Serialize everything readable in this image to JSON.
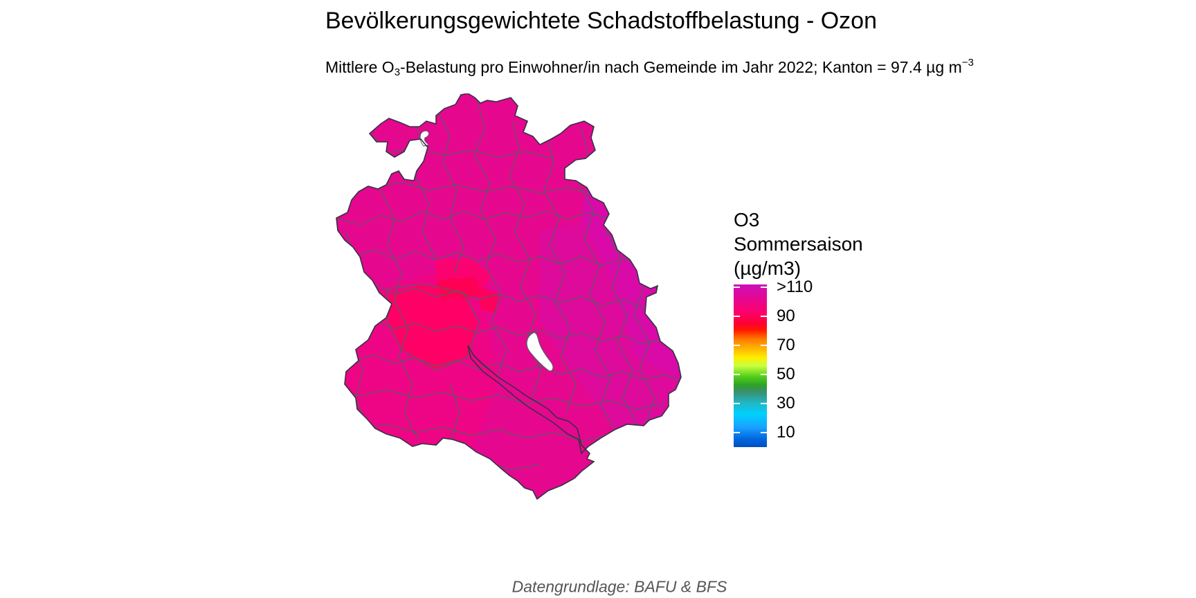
{
  "title": "Bevölkerungsgewichtete Schadstoffbelastung - Ozon",
  "subtitle": {
    "part1": "Mittlere O",
    "sub": "3",
    "part2": "-Belastung pro Einwohner/in nach Gemeinde im Jahr 2022; Kanton = 97.4 µg m",
    "sup": "−3"
  },
  "legend": {
    "title_lines": [
      "O3",
      "Sommersaison",
      "(µg/m3)"
    ],
    "ticks": [
      ">110",
      "90",
      "70",
      "50",
      "30",
      "10"
    ]
  },
  "caption": "Datengrundlage: BAFU & BFS",
  "colors": {
    "ozone_high": "#e6078f",
    "ozone_mid_high": "#f2047f",
    "ozone_city": "#ff0066",
    "ozone_north_east": "#d90aa7",
    "border": "#5a5a66",
    "lake": "#ffffff",
    "caption": "#555555"
  }
}
